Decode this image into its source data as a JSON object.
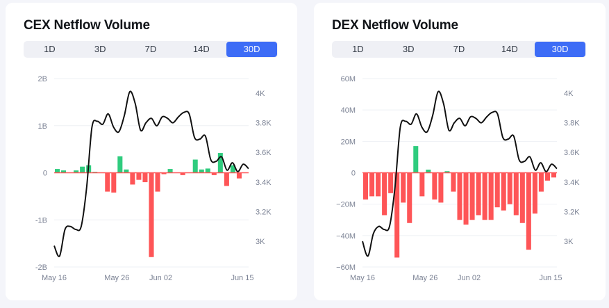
{
  "colors": {
    "positive": "#2fcc7e",
    "negative": "#fe5557",
    "line": "#111111",
    "tab_active": "#3d6cf6"
  },
  "tabs": [
    "1D",
    "3D",
    "7D",
    "14D",
    "30D"
  ],
  "active_tab": "30D",
  "cex": {
    "title": "CEX Netflow Volume",
    "chart_data": {
      "type": "bar",
      "title": "CEX Netflow Volume",
      "x_ticks": [
        "May 16",
        "May 26",
        "Jun 02",
        "Jun 15"
      ],
      "x_tick_index": [
        0,
        10,
        17,
        30
      ],
      "y_left": {
        "ticks": [
          "2B",
          "1B",
          "0",
          "-1B",
          "-2B"
        ],
        "values": [
          2000000000,
          1000000000,
          0,
          -1000000000,
          -2000000000
        ],
        "lim": [
          -2000000000,
          2000000000
        ]
      },
      "y_right": {
        "ticks": [
          "4K",
          "3.8K",
          "3.6K",
          "3.4K",
          "3.2K",
          "3K"
        ],
        "values": [
          4000,
          3800,
          3600,
          3400,
          3200,
          3000
        ]
      },
      "netflow_values": [
        80000000,
        50000000,
        0,
        50000000,
        130000000,
        160000000,
        20000000,
        0,
        -400000000,
        -420000000,
        350000000,
        70000000,
        -250000000,
        -150000000,
        -200000000,
        -1790000000,
        -400000000,
        -30000000,
        80000000,
        0,
        -50000000,
        0,
        280000000,
        70000000,
        90000000,
        -50000000,
        420000000,
        -280000000,
        160000000,
        -120000000,
        0
      ],
      "price_values": [
        2970,
        2900,
        3080,
        3100,
        3080,
        3100,
        3360,
        3770,
        3810,
        3790,
        3860,
        3770,
        3740,
        3850,
        4010,
        3930,
        3750,
        3800,
        3830,
        3780,
        3840,
        3830,
        3800,
        3840,
        3870,
        3860,
        3700,
        3690,
        3710,
        3550,
        3540,
        3570,
        3480,
        3530,
        3470,
        3520,
        3490
      ]
    }
  },
  "dex": {
    "title": "DEX Netflow Volume",
    "chart_data": {
      "type": "bar",
      "title": "DEX Netflow Volume",
      "x_ticks": [
        "May 16",
        "May 26",
        "Jun 02",
        "Jun 15"
      ],
      "x_tick_index": [
        0,
        10,
        17,
        30
      ],
      "y_left": {
        "ticks": [
          "60M",
          "40M",
          "20M",
          "0",
          "−20M",
          "−40M",
          "−60M"
        ],
        "values": [
          60000000,
          40000000,
          20000000,
          0,
          -20000000,
          -40000000,
          -60000000
        ],
        "lim": [
          -60000000,
          60000000
        ]
      },
      "y_right": {
        "ticks": [
          "4K",
          "3.8K",
          "3.6K",
          "3.4K",
          "3.2K",
          "3K"
        ],
        "values": [
          4000,
          3800,
          3600,
          3400,
          3200,
          3000
        ]
      },
      "netflow_values": [
        -17000000,
        -15000000,
        -15000000,
        -27000000,
        -13000000,
        -54000000,
        -19000000,
        -32000000,
        17000000,
        -15000000,
        2000000,
        -17000000,
        -19000000,
        1000000,
        -12000000,
        -30000000,
        -33000000,
        -30000000,
        -27000000,
        -30000000,
        -30000000,
        -22000000,
        -24000000,
        -20000000,
        -27000000,
        -32000000,
        -49000000,
        -26000000,
        -12000000,
        -5000000,
        -3000000
      ],
      "price_values": [
        3000,
        2900,
        3050,
        3100,
        3080,
        3100,
        3360,
        3770,
        3810,
        3790,
        3860,
        3770,
        3740,
        3850,
        4010,
        3930,
        3750,
        3800,
        3830,
        3780,
        3840,
        3830,
        3800,
        3840,
        3870,
        3860,
        3700,
        3690,
        3710,
        3550,
        3540,
        3570,
        3480,
        3530,
        3470,
        3520,
        3490
      ]
    }
  }
}
